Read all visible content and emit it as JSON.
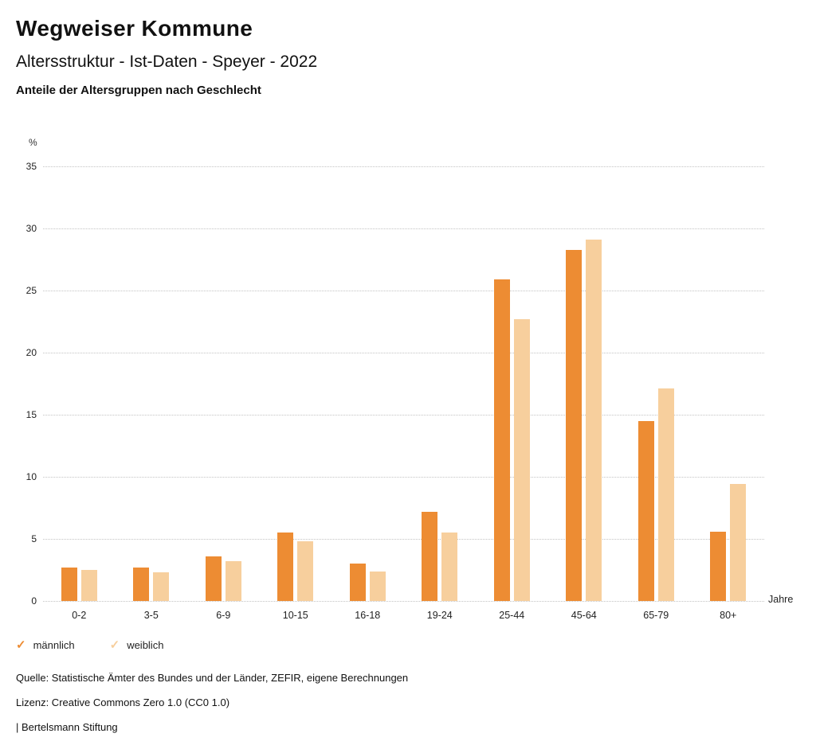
{
  "header": {
    "title": "Wegweiser Kommune",
    "subtitle": "Altersstruktur - Ist-Daten - Speyer - 2022",
    "chart_heading": "Anteile der Altersgruppen nach Geschlecht"
  },
  "chart_data": {
    "type": "bar",
    "title": "Anteile der Altersgruppen nach Geschlecht",
    "categories": [
      "0-2",
      "3-5",
      "6-9",
      "10-15",
      "16-18",
      "19-24",
      "25-44",
      "45-64",
      "65-79",
      "80+"
    ],
    "series": [
      {
        "name": "männlich",
        "color": "#ED8C33",
        "values": [
          2.7,
          2.7,
          3.6,
          5.5,
          3.0,
          7.2,
          25.9,
          28.3,
          14.5,
          5.6
        ]
      },
      {
        "name": "weiblich",
        "color": "#F7CF9D",
        "values": [
          2.5,
          2.3,
          3.2,
          4.8,
          2.4,
          5.5,
          22.7,
          29.1,
          17.1,
          9.4
        ]
      }
    ],
    "ylabel": "%",
    "xlabel": "Jahre",
    "ylim": [
      0,
      35
    ],
    "ytick_step": 5,
    "grid": true,
    "legend_position": "bottom"
  },
  "footer": {
    "source": "Quelle: Statistische Ämter des Bundes und der Länder, ZEFIR, eigene Berechnungen",
    "license": "Lizenz: Creative Commons Zero 1.0 (CC0 1.0)",
    "attribution": "| Bertelsmann Stiftung"
  }
}
